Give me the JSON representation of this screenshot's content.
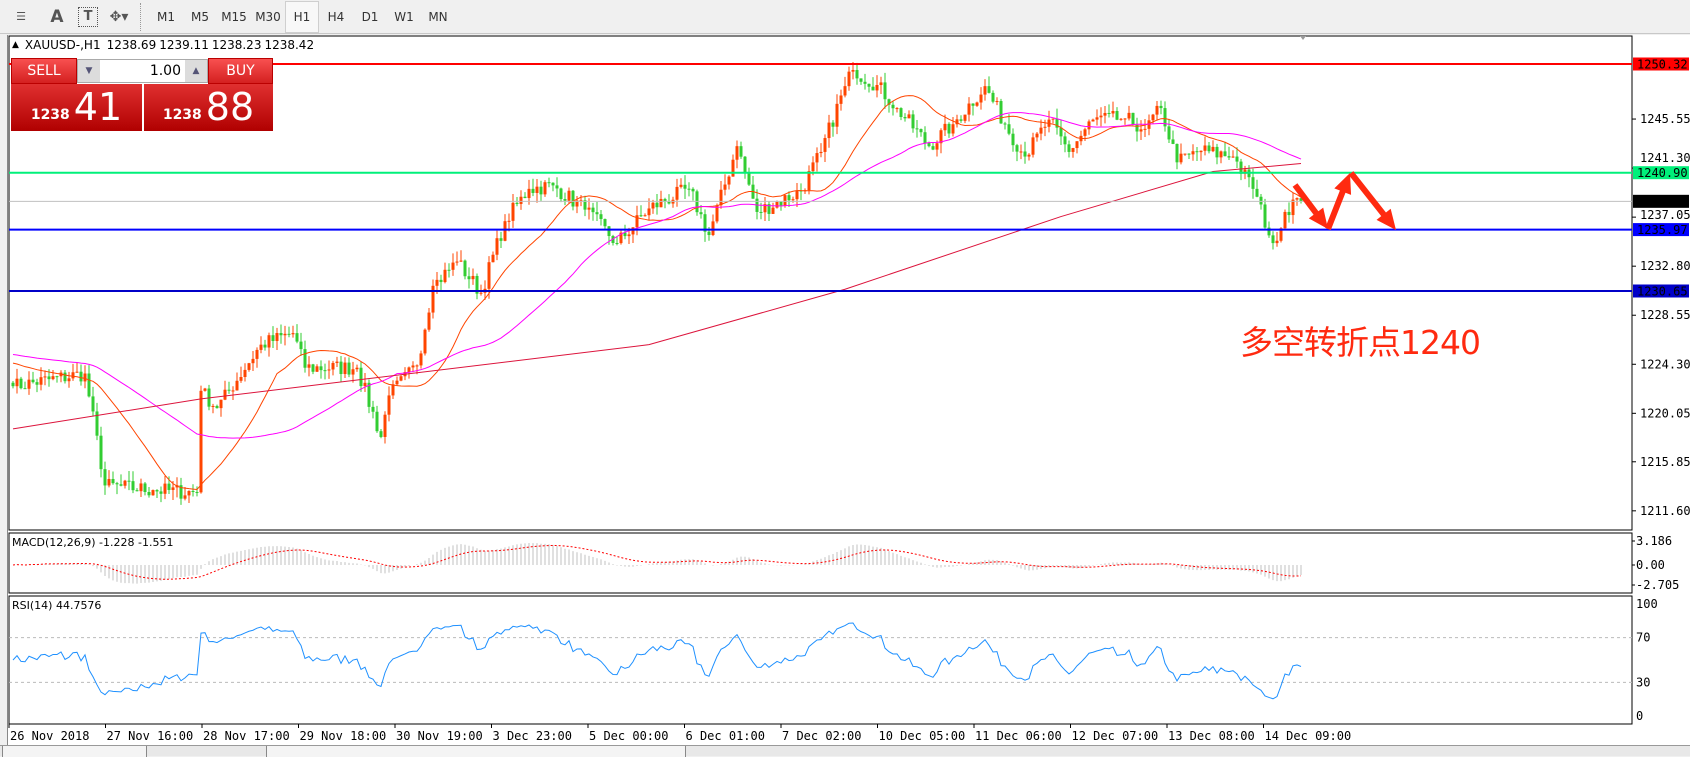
{
  "toolbar": {
    "tools": [
      {
        "icon": "fibonacci-fan-icon"
      },
      {
        "icon": "text-icon",
        "label": "A"
      },
      {
        "icon": "text-label-icon",
        "label": "T"
      },
      {
        "icon": "arrows-icon"
      }
    ],
    "timeframes": [
      "M1",
      "M5",
      "M15",
      "M30",
      "H1",
      "H4",
      "D1",
      "W1",
      "MN"
    ],
    "active_timeframe": "H1"
  },
  "chart": {
    "symbol": "XAUUSD-,H1",
    "open": "1238.69",
    "high": "1239.11",
    "low": "1238.23",
    "close": "1238.42"
  },
  "trade": {
    "sell_label": "SELL",
    "buy_label": "BUY",
    "lot": "1.00",
    "sell_small": "1238",
    "sell_big": "41",
    "buy_small": "1238",
    "buy_big": "88"
  },
  "price_axis": {
    "ticks": [
      "1245.55",
      "1241.30",
      "1237.05",
      "1232.80",
      "1228.55",
      "1224.30",
      "1220.05",
      "1215.85",
      "1211.60"
    ]
  },
  "levels": [
    {
      "price": 1250.32,
      "label": "1250.32",
      "color": "#ff0000"
    },
    {
      "price": 1240.9,
      "label": "1240.90",
      "color": "#00f07a"
    },
    {
      "price": 1238.42,
      "label": "1238.42",
      "color": "#c0c0c0",
      "label_bg": "#000000"
    },
    {
      "price": 1235.97,
      "label": "1235.97",
      "color": "#0000ff"
    },
    {
      "price": 1230.65,
      "label": "1230.65",
      "color": "#0000c8"
    }
  ],
  "time_axis": [
    "26 Nov 2018",
    "27 Nov 16:00",
    "28 Nov 17:00",
    "29 Nov 18:00",
    "30 Nov 19:00",
    "3 Dec 23:00",
    "5 Dec 00:00",
    "6 Dec 01:00",
    "7 Dec 02:00",
    "10 Dec 05:00",
    "11 Dec 06:00",
    "12 Dec 07:00",
    "13 Dec 08:00",
    "14 Dec 09:00"
  ],
  "macd": {
    "label": "MACD(12,26,9) -1.228 -1.551",
    "ticks": [
      "3.186",
      "0.00",
      "-2.705"
    ]
  },
  "rsi": {
    "label": "RSI(14) 44.7576",
    "ticks": [
      "100",
      "70",
      "30",
      "0"
    ],
    "levels": [
      70,
      30
    ]
  },
  "annotation": {
    "text": "多空转折点1240",
    "color": "#ff2a10"
  },
  "colors": {
    "bull": "#ff4500",
    "bear": "#32cd32",
    "ma_fast": "#ff4500",
    "ma_mid": "#ff00ff",
    "ma_slow": "#dc143c",
    "rsi": "#1e90ff",
    "macd_signal": "#ff0000",
    "macd_hist": "#c0c0c0"
  },
  "chart_data": {
    "type": "candlestick",
    "ylim": [
      1209.5,
      1252.5
    ],
    "close_path": [
      [
        0,
        1222.4
      ],
      [
        18,
        1223.5
      ],
      [
        23,
        1213.8
      ],
      [
        35,
        1213.4
      ],
      [
        46,
        1213.2
      ],
      [
        47,
        1222
      ],
      [
        51,
        1220.5
      ],
      [
        62,
        1226
      ],
      [
        70,
        1227
      ],
      [
        73,
        1224
      ],
      [
        86,
        1224
      ],
      [
        92,
        1218
      ],
      [
        94,
        1221.6
      ],
      [
        101,
        1224.2
      ],
      [
        105,
        1231.1
      ],
      [
        111,
        1233.2
      ],
      [
        117,
        1230.5
      ],
      [
        123,
        1236.7
      ],
      [
        129,
        1239.5
      ],
      [
        135,
        1239.8
      ],
      [
        143,
        1237.7
      ],
      [
        151,
        1234.8
      ],
      [
        159,
        1237.8
      ],
      [
        169,
        1239.5
      ],
      [
        174,
        1235.5
      ],
      [
        181,
        1243.2
      ],
      [
        186,
        1237.5
      ],
      [
        197,
        1239.3
      ],
      [
        202,
        1242.7
      ],
      [
        208,
        1248.4
      ],
      [
        210,
        1249.8
      ],
      [
        216,
        1248.5
      ],
      [
        221,
        1246.5
      ],
      [
        229,
        1243.2
      ],
      [
        235,
        1245.1
      ],
      [
        243,
        1248.4
      ],
      [
        248,
        1245.1
      ],
      [
        253,
        1242.3
      ],
      [
        259,
        1245.5
      ],
      [
        264,
        1242.7
      ],
      [
        270,
        1245.5
      ],
      [
        278,
        1245.6
      ],
      [
        283,
        1244.7
      ],
      [
        287,
        1246.5
      ],
      [
        291,
        1241.8
      ],
      [
        297,
        1242.8
      ],
      [
        305,
        1242.3
      ],
      [
        310,
        1239.5
      ],
      [
        315,
        1234.8
      ],
      [
        318,
        1237.5
      ],
      [
        321,
        1238.7
      ],
      [
        322,
        1238.42
      ]
    ],
    "ma_slow_path": [
      [
        0,
        1218.7
      ],
      [
        47,
        1221.3
      ],
      [
        159,
        1226
      ],
      [
        208,
        1230.8
      ],
      [
        262,
        1237.1
      ],
      [
        300,
        1241
      ],
      [
        322,
        1241.7
      ]
    ]
  }
}
